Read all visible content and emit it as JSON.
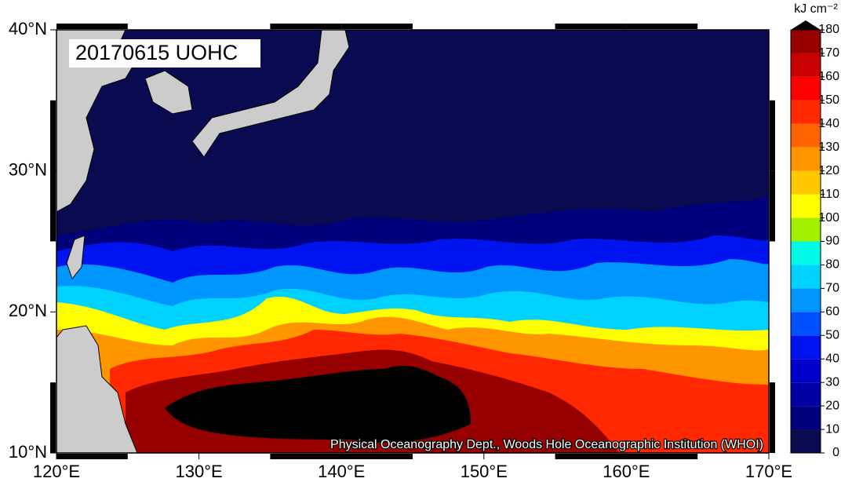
{
  "map": {
    "title": "20170615 UOHC",
    "credit": "Physical Oceanography Dept., Woods Hole Oceanographic Institution (WHOI)",
    "xlim": [
      120,
      170
    ],
    "ylim": [
      10,
      40
    ],
    "xticks": [
      {
        "value": 120,
        "label": "120°E"
      },
      {
        "value": 130,
        "label": "130°E"
      },
      {
        "value": 140,
        "label": "140°E"
      },
      {
        "value": 150,
        "label": "150°E"
      },
      {
        "value": 160,
        "label": "160°E"
      },
      {
        "value": 170,
        "label": "170°E"
      }
    ],
    "yticks": [
      {
        "value": 10,
        "label": "10°N"
      },
      {
        "value": 20,
        "label": "20°N"
      },
      {
        "value": 30,
        "label": "30°N"
      },
      {
        "value": 40,
        "label": "40°N"
      }
    ],
    "colorbar": {
      "unit": "kJ cm⁻²",
      "ticks": [
        0,
        10,
        20,
        30,
        40,
        50,
        60,
        70,
        80,
        90,
        100,
        110,
        120,
        130,
        140,
        150,
        160,
        170,
        180
      ],
      "colors": [
        "#0a0a50",
        "#00007d",
        "#0000a5",
        "#0000cd",
        "#0014f0",
        "#0050ff",
        "#0096ff",
        "#00d2ff",
        "#00fae6",
        "#a0f000",
        "#ffff00",
        "#ffc800",
        "#ff9600",
        "#ff6400",
        "#ff2800",
        "#ff0000",
        "#c80000",
        "#960000",
        "#500000"
      ],
      "over_color": "#000000"
    }
  }
}
